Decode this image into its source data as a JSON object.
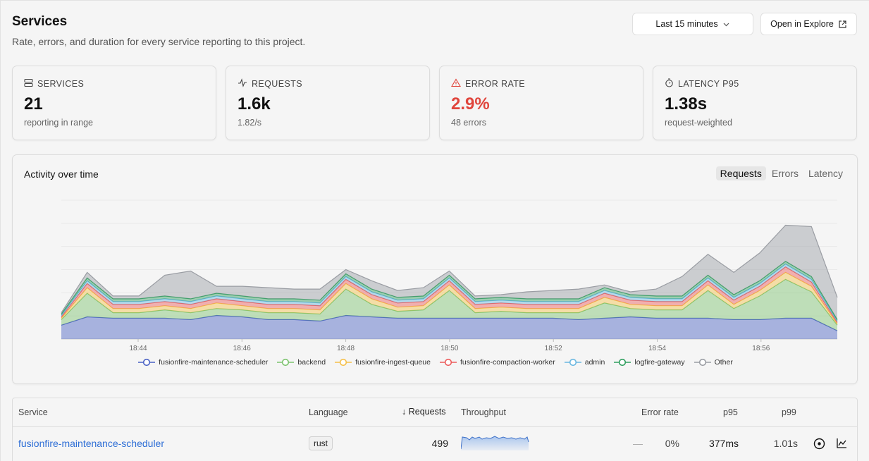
{
  "page": {
    "title": "Services",
    "subtitle": "Rate, errors, and duration for every service reporting to this project."
  },
  "toolbar": {
    "range_label": "Last 15 minutes",
    "explore_label": "Open in Explore"
  },
  "stats": {
    "services": {
      "label": "SERVICES",
      "value": "21",
      "sub": "reporting in range",
      "icon": "server-icon"
    },
    "requests": {
      "label": "REQUESTS",
      "value": "1.6k",
      "sub": "1.82/s",
      "icon": "activity-icon"
    },
    "error_rate": {
      "label": "ERROR RATE",
      "value": "2.9%",
      "sub": "48 errors",
      "icon": "alert-triangle-icon",
      "color": "#e0453c"
    },
    "latency": {
      "label": "LATENCY P95",
      "value": "1.38s",
      "sub": "request-weighted",
      "icon": "stopwatch-icon"
    }
  },
  "activity": {
    "title": "Activity over time",
    "tabs": [
      "Requests",
      "Errors",
      "Latency"
    ],
    "active_tab": "Requests"
  },
  "chart_data": {
    "type": "area",
    "stacked": true,
    "xlabel": "",
    "ylabel": "",
    "grid": true,
    "legend": "bottom",
    "x_ticks": [
      "18:44",
      "18:46",
      "18:48",
      "18:50",
      "18:52",
      "18:54",
      "18:56"
    ],
    "x": [
      "18:42",
      "18:43",
      "18:43",
      "18:44",
      "18:44",
      "18:45",
      "18:45",
      "18:46",
      "18:46",
      "18:47",
      "18:47",
      "18:48",
      "18:48",
      "18:49",
      "18:49",
      "18:50",
      "18:50",
      "18:51",
      "18:51",
      "18:52",
      "18:52",
      "18:53",
      "18:53",
      "18:54",
      "18:54",
      "18:55",
      "18:55",
      "18:56",
      "18:56",
      "18:57",
      "18:57"
    ],
    "ylim": [
      0,
      100
    ],
    "series": [
      {
        "name": "fusionfire-maintenance-scheduler",
        "color": "#4a62c4",
        "values": [
          10,
          16,
          15,
          15,
          15,
          14,
          17,
          16,
          14,
          14,
          13,
          17,
          16,
          15,
          15,
          15,
          15,
          15,
          15,
          15,
          14,
          15,
          16,
          15,
          15,
          15,
          14,
          14,
          15,
          15,
          6
        ]
      },
      {
        "name": "backend",
        "color": "#7cc36e",
        "values": [
          4,
          17,
          4,
          4,
          6,
          5,
          5,
          5,
          5,
          5,
          5,
          19,
          9,
          5,
          6,
          20,
          4,
          5,
          4,
          4,
          5,
          11,
          6,
          6,
          6,
          20,
          8,
          17,
          28,
          19,
          4
        ]
      },
      {
        "name": "fusionfire-ingest-queue",
        "color": "#f5c04a",
        "values": [
          1,
          4,
          3,
          3,
          3,
          3,
          4,
          3,
          3,
          3,
          3,
          4,
          4,
          3,
          3,
          4,
          3,
          3,
          3,
          3,
          3,
          4,
          3,
          3,
          3,
          4,
          3,
          4,
          5,
          4,
          1
        ]
      },
      {
        "name": "fusionfire-compaction-worker",
        "color": "#ec5b5b",
        "values": [
          1,
          3,
          3,
          3,
          3,
          3,
          3,
          3,
          3,
          3,
          3,
          3,
          3,
          3,
          3,
          3,
          3,
          3,
          3,
          3,
          3,
          3,
          3,
          3,
          3,
          3,
          3,
          3,
          4,
          3,
          1
        ]
      },
      {
        "name": "admin",
        "color": "#69b7e0",
        "values": [
          1,
          2,
          2,
          2,
          2,
          2,
          2,
          2,
          2,
          2,
          2,
          2,
          2,
          2,
          2,
          2,
          2,
          2,
          2,
          2,
          2,
          2,
          2,
          2,
          2,
          2,
          2,
          2,
          2,
          2,
          1
        ]
      },
      {
        "name": "logfire-gateway",
        "color": "#2f9e5e",
        "values": [
          1,
          2,
          2,
          2,
          2,
          2,
          2,
          2,
          2,
          2,
          2,
          2,
          2,
          2,
          2,
          2,
          2,
          2,
          2,
          2,
          2,
          2,
          2,
          2,
          2,
          2,
          2,
          2,
          2,
          2,
          1
        ]
      },
      {
        "name": "Other",
        "color": "#9a9da3",
        "values": [
          1,
          4,
          2,
          2,
          15,
          20,
          5,
          7,
          8,
          7,
          8,
          3,
          6,
          5,
          6,
          3,
          2,
          2,
          5,
          6,
          7,
          2,
          2,
          5,
          14,
          15,
          16,
          20,
          26,
          36,
          16
        ]
      }
    ]
  },
  "table": {
    "columns": [
      "Service",
      "Language",
      "Requests",
      "Throughput",
      "Error rate",
      "p95",
      "p99"
    ],
    "sort_indicator": "↓",
    "rows": [
      {
        "service": "fusionfire-maintenance-scheduler",
        "language": "rust",
        "requests": "499",
        "error_dash": "—",
        "error_rate": "0%",
        "p95": "377ms",
        "p99": "1.01s"
      }
    ]
  }
}
